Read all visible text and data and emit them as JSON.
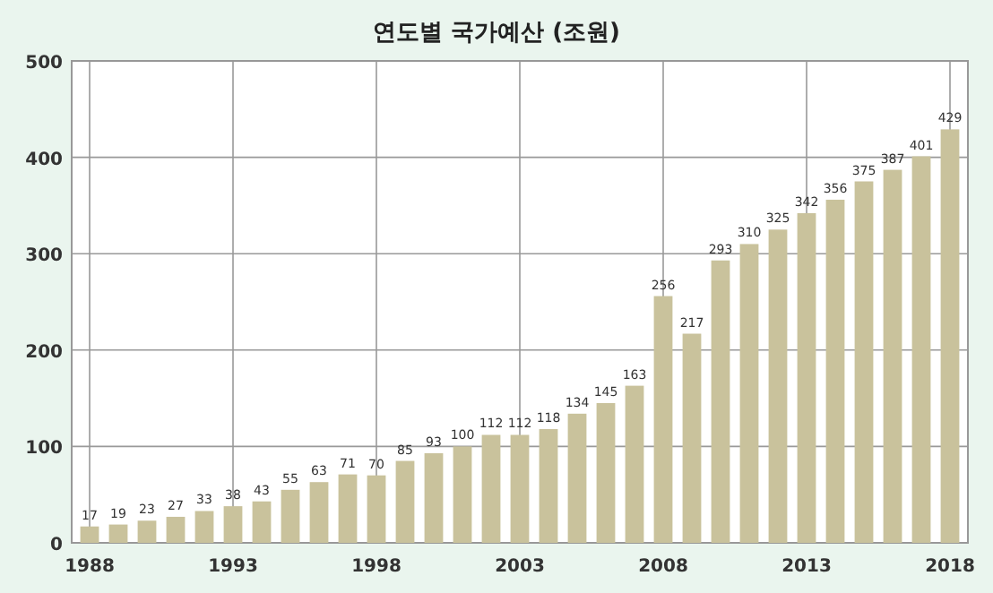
{
  "chart_data": {
    "type": "bar",
    "title": "연도별 국가예산 (조원)",
    "categories": [
      "1988",
      null,
      null,
      null,
      null,
      "1993",
      null,
      null,
      null,
      null,
      "1998",
      null,
      null,
      null,
      null,
      "2003",
      null,
      null,
      null,
      null,
      "2008",
      null,
      null,
      null,
      null,
      "2013",
      null,
      null,
      null,
      null,
      "2018"
    ],
    "values": [
      17,
      19,
      23,
      27,
      33,
      38,
      43,
      55,
      63,
      71,
      70,
      85,
      93,
      100,
      112,
      112,
      118,
      134,
      145,
      163,
      256,
      217,
      293,
      310,
      325,
      342,
      356,
      375,
      387,
      401,
      429
    ],
    "color": "#c9c29c",
    "ylim": [
      0,
      500
    ],
    "yticks": [
      0,
      100,
      200,
      300,
      400,
      500
    ],
    "grid": true,
    "data_labels": true
  }
}
